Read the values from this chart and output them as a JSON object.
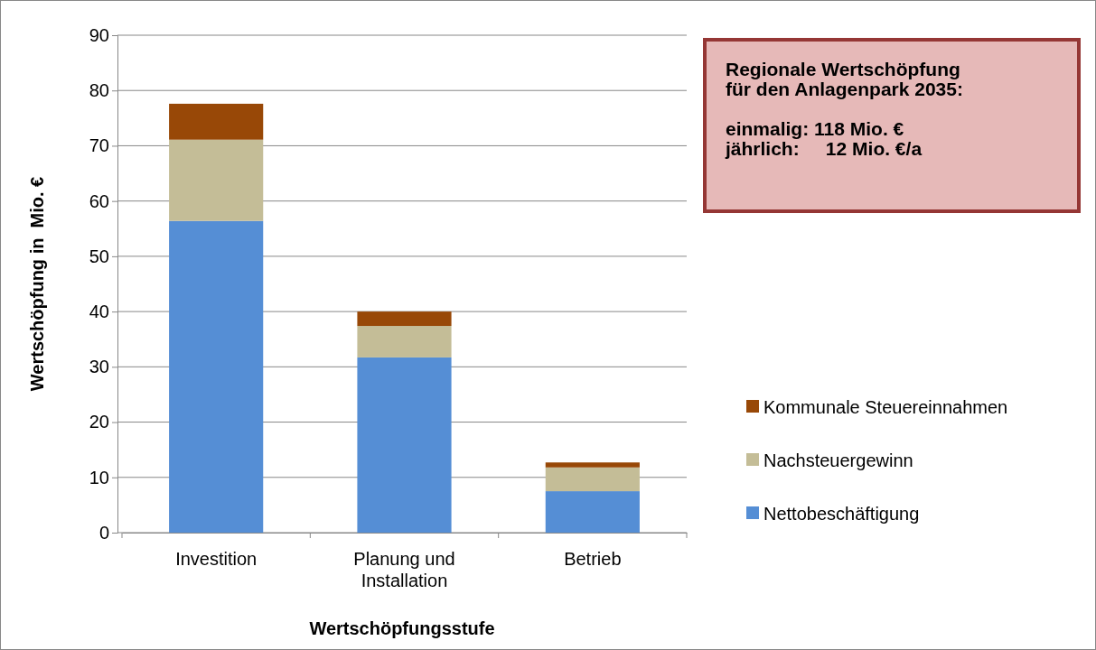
{
  "chart_data": {
    "type": "bar",
    "stacked": true,
    "xlabel": "Wertschöpfungsstufe",
    "ylabel": "Wertschöpfung in  Mio. €",
    "categories": [
      "Investition",
      "Planung und Installation",
      "Betrieb"
    ],
    "series": [
      {
        "name": "Nettobeschäftigung",
        "color": "#558ed5",
        "values": [
          56.4,
          31.7,
          7.5
        ]
      },
      {
        "name": "Nachsteuergewinn",
        "color": "#c4bd97",
        "values": [
          14.7,
          5.7,
          4.3
        ]
      },
      {
        "name": "Kommunale Steuereinnahmen",
        "color": "#984807",
        "values": [
          6.5,
          2.6,
          0.9
        ]
      }
    ],
    "ylim": [
      0,
      90
    ],
    "yticks": [
      0,
      10,
      20,
      30,
      40,
      50,
      60,
      70,
      80,
      90
    ],
    "grid": "y",
    "legend": "right",
    "annotations": [
      "Regionale Wertschöpfung\nfür den Anlagenpark 2035:",
      "einmalig: 118 Mio. €\njährlich:     12 Mio. €/a"
    ]
  }
}
